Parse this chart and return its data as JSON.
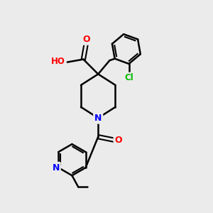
{
  "background_color": "#ebebeb",
  "bond_color": "#000000",
  "atom_colors": {
    "O": "#ff0000",
    "N": "#0000ff",
    "Cl": "#00bb00",
    "H": "#708090",
    "C": "#000000"
  },
  "figsize": [
    3.0,
    3.0
  ],
  "dpi": 100
}
